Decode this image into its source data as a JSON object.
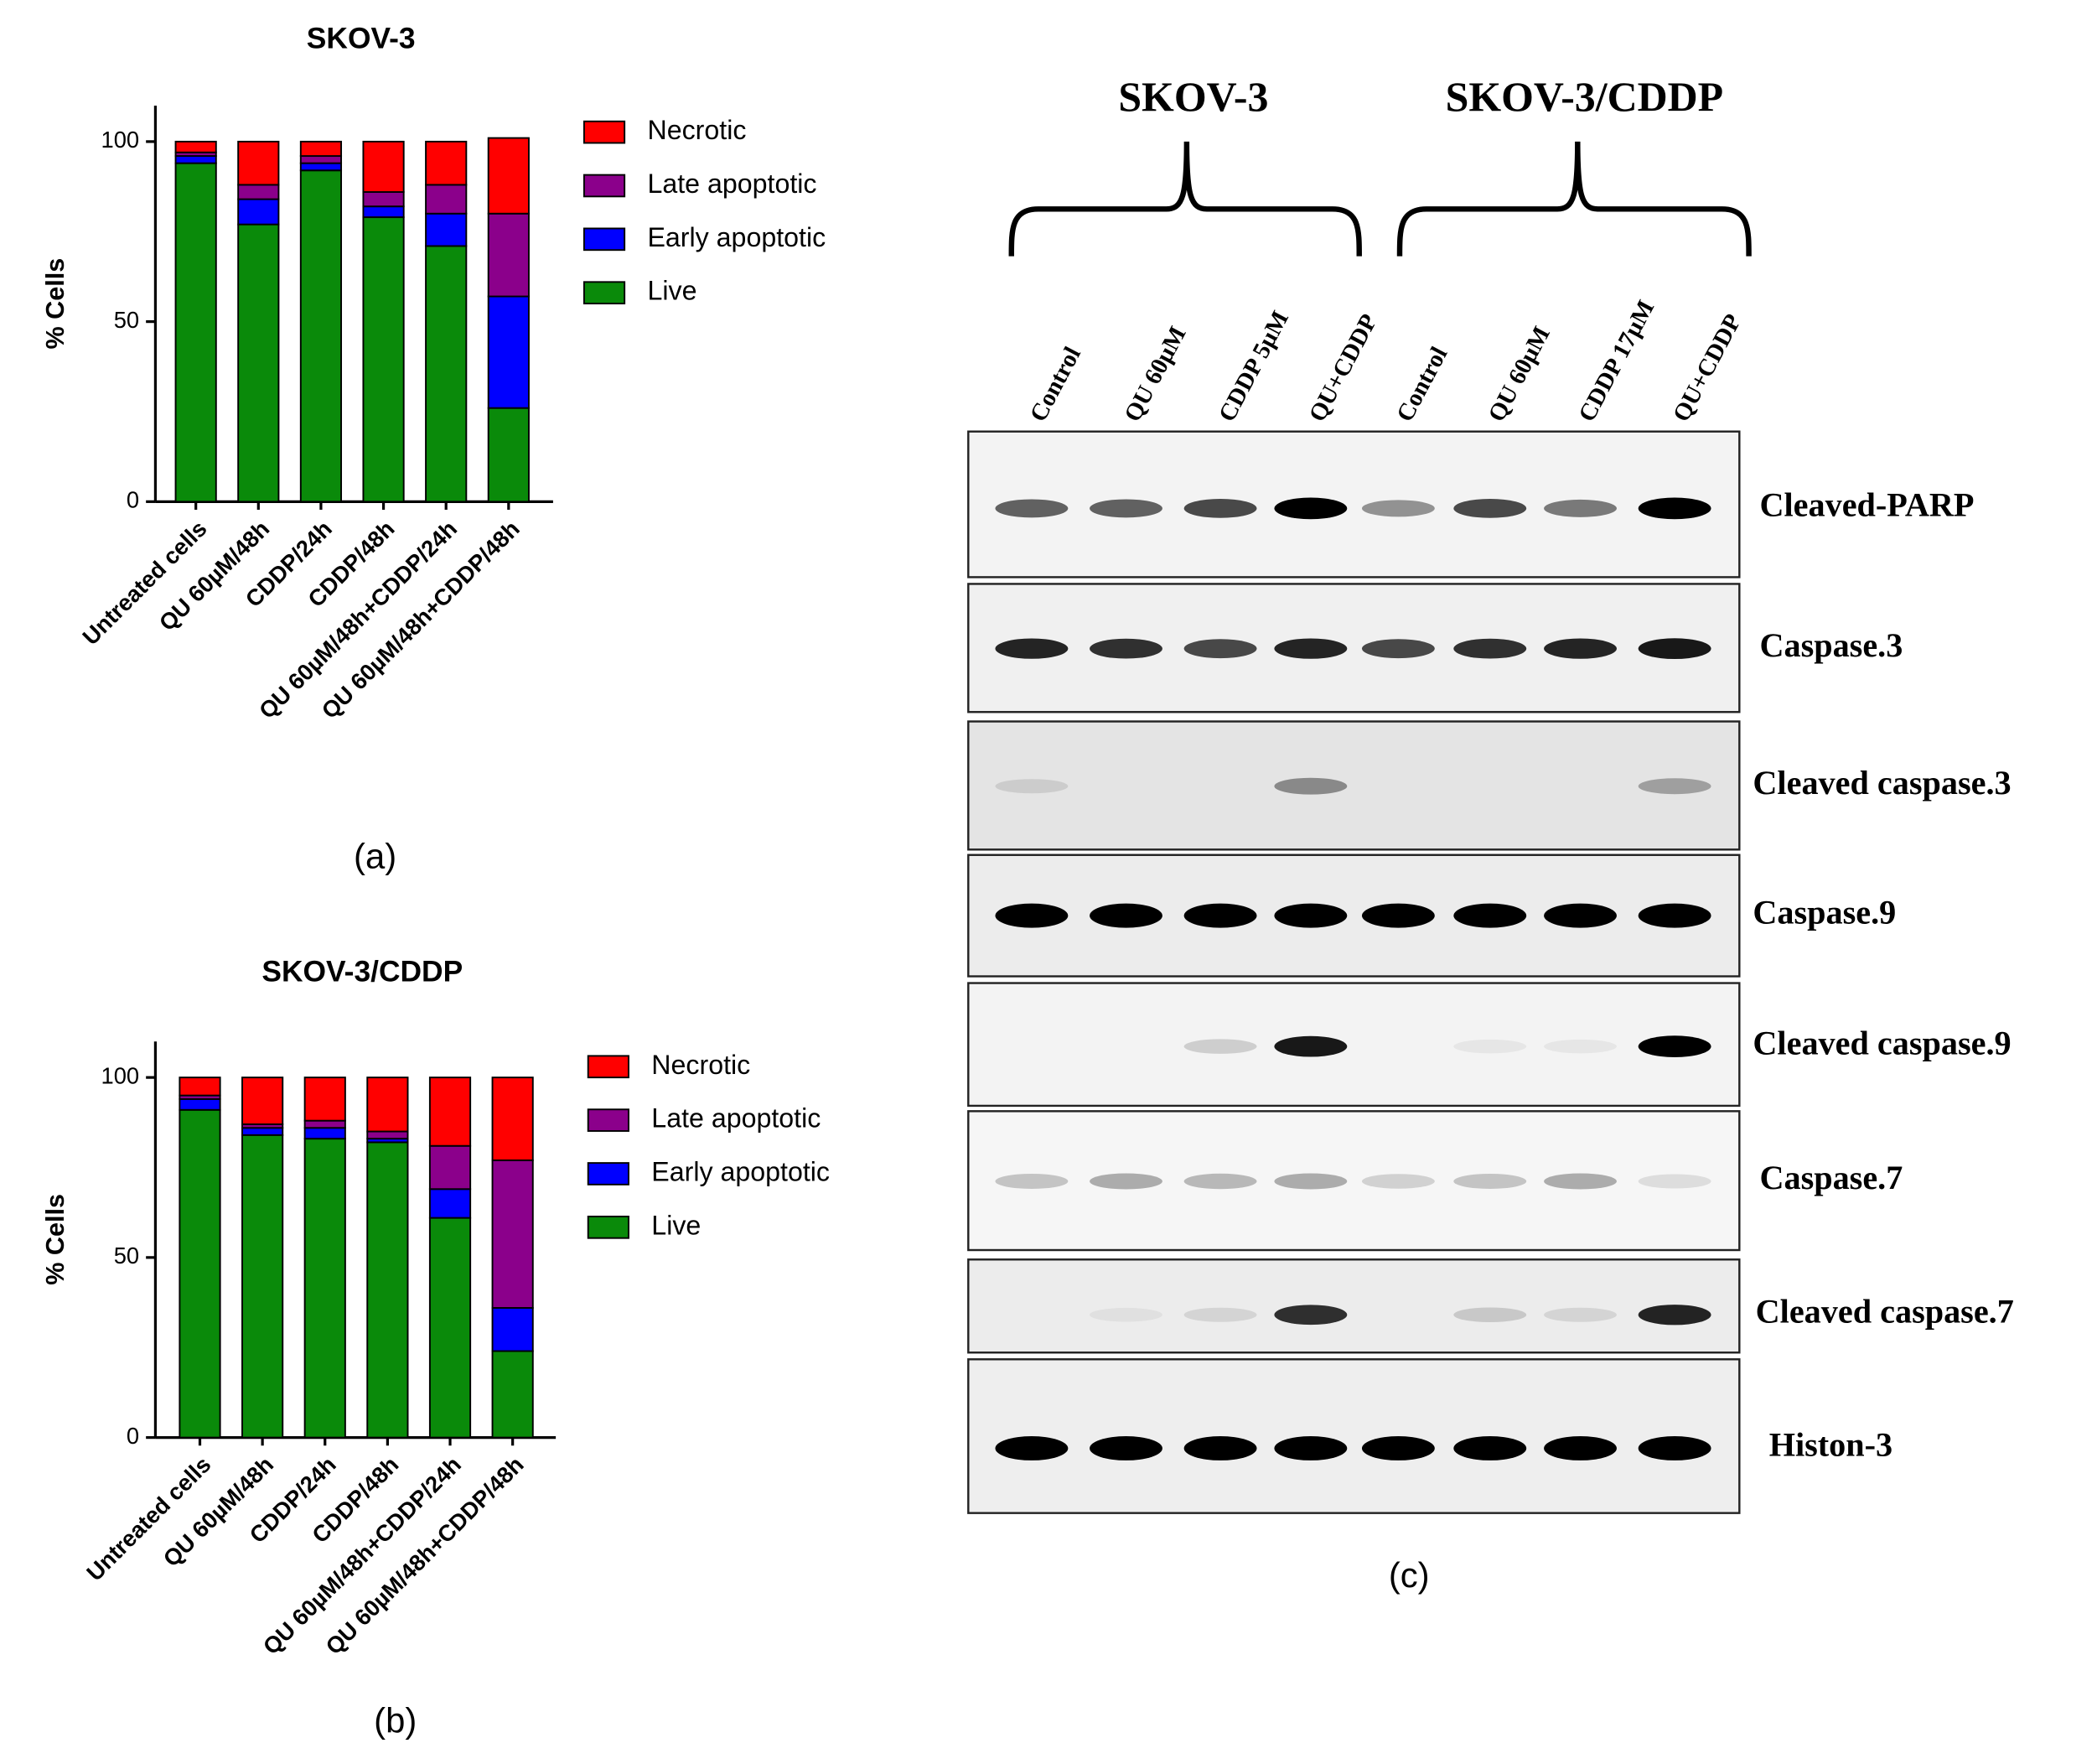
{
  "chart_data": [
    {
      "type": "stacked-bar",
      "title": "SKOV-3",
      "y_label": "% Cells",
      "categories": [
        "Untreated cells",
        "QU 60µM/48h",
        "CDDP/24h",
        "CDDP/48h",
        "QU 60µM/48h+CDDP/24h",
        "QU 60µM/48h+CDDP/48h"
      ],
      "series": [
        {
          "name": "Live",
          "color": "#0a8a0a",
          "values": [
            94,
            77,
            92,
            79,
            71,
            26
          ]
        },
        {
          "name": "Early apoptotic",
          "color": "#0000ff",
          "values": [
            2,
            7,
            2,
            3,
            9,
            31
          ]
        },
        {
          "name": "Late apoptotic",
          "color": "#8b008b",
          "values": [
            1,
            4,
            2,
            4,
            8,
            23
          ]
        },
        {
          "name": "Necrotic",
          "color": "#ff0000",
          "values": [
            3,
            12,
            4,
            14,
            12,
            21
          ]
        }
      ],
      "ylim": [
        0,
        110
      ],
      "yticks": [
        0,
        50,
        100
      ],
      "panel_label": "(a)"
    },
    {
      "type": "stacked-bar",
      "title": "SKOV-3/CDDP",
      "y_label": "% Cells",
      "categories": [
        "Untreated cells",
        "QU 60µM/48h",
        "CDDP/24h",
        "CDDP/48h",
        "QU 60µM/48h+CDDP/24h",
        "QU 60µM/48h+CDDP/48h"
      ],
      "series": [
        {
          "name": "Live",
          "color": "#0a8a0a",
          "values": [
            91,
            84,
            83,
            82,
            61,
            24
          ]
        },
        {
          "name": "Early apoptotic",
          "color": "#0000ff",
          "values": [
            3,
            2,
            3,
            1,
            8,
            12
          ]
        },
        {
          "name": "Late apoptotic",
          "color": "#8b008b",
          "values": [
            1,
            1,
            2,
            2,
            12,
            41
          ]
        },
        {
          "name": "Necrotic",
          "color": "#ff0000",
          "values": [
            5,
            13,
            12,
            15,
            19,
            23
          ]
        }
      ],
      "ylim": [
        0,
        110
      ],
      "yticks": [
        0,
        50,
        100
      ],
      "panel_label": "(b)"
    }
  ],
  "blot": {
    "groups": [
      "SKOV-3",
      "SKOV-3/CDDP"
    ],
    "lanes": [
      "Control",
      "QU 60µM",
      "CDDP 5µM",
      "QU+CDDP",
      "Control",
      "QU 60µM",
      "CDDP 17µM",
      "QU+CDDP"
    ],
    "proteins": [
      "Cleaved-PARP",
      "Caspase.3",
      "Cleaved caspase.3",
      "Caspase.9",
      "Cleaved caspase.9",
      "Caspase.7",
      "Cleaved caspase.7",
      "Histon-3"
    ],
    "panel_label": "(c)"
  }
}
